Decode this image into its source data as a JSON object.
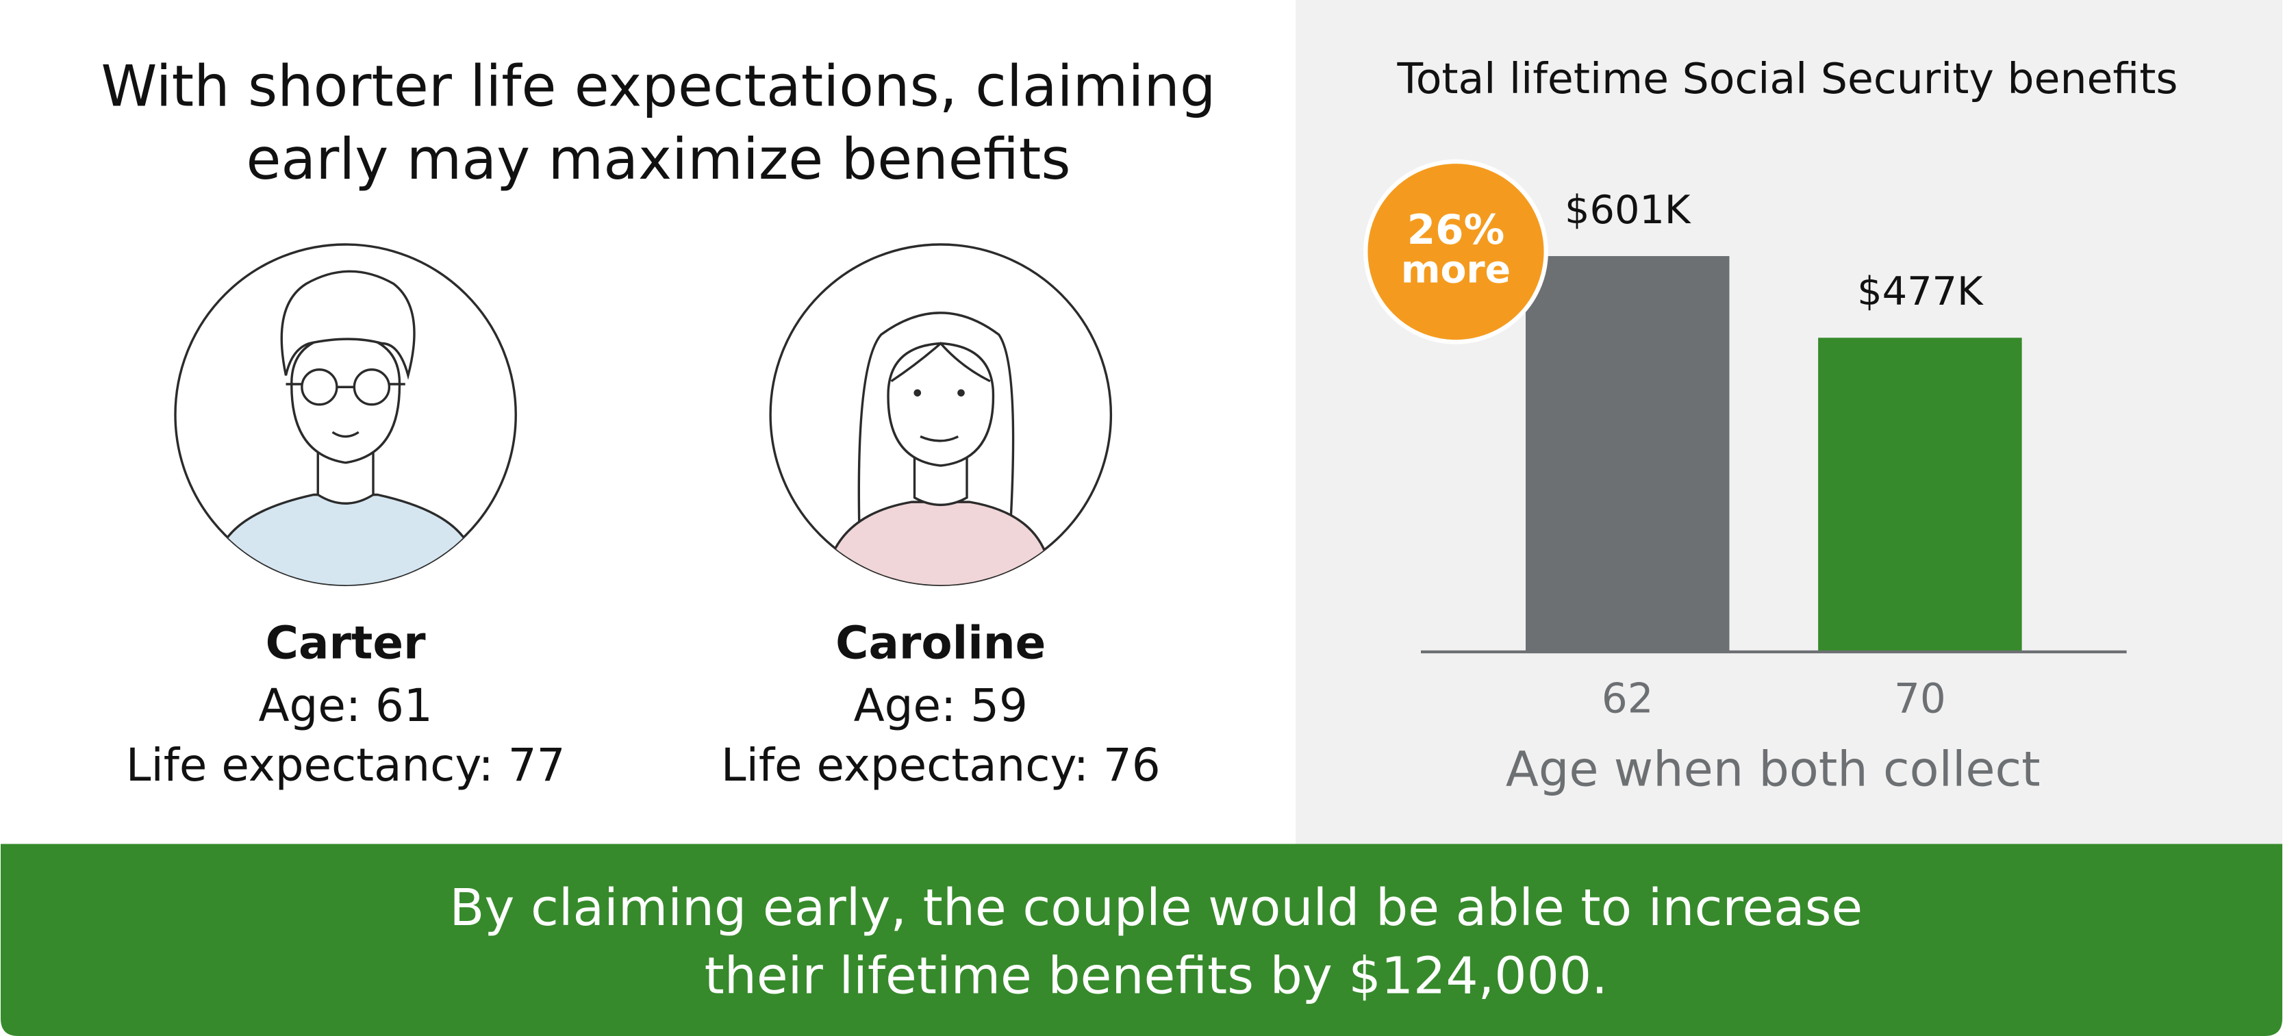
{
  "title": [
    "With shorter life expectations, claiming",
    "early may maximize benefits"
  ],
  "people": [
    {
      "name": "Carter",
      "age": "Age: 61",
      "life_expectancy": "Life expectancy: 77"
    },
    {
      "name": "Caroline",
      "age": "Age: 59",
      "life_expectancy": "Life expectancy: 76"
    }
  ],
  "chart_data": {
    "type": "bar",
    "title": "Total lifetime Social Security benefits",
    "categories": [
      "62",
      "70"
    ],
    "values": [
      601,
      477
    ],
    "value_labels": [
      "$601K",
      "$477K"
    ],
    "colors": [
      "#6d7073",
      "#368a2b"
    ],
    "x_label": "Age when both collect",
    "annotation": [
      "26%",
      "more"
    ],
    "annotation_color": "#f49b1f"
  },
  "footer": [
    "By claiming early, the couple would be able to increase",
    "their lifetime benefits by $124,000."
  ]
}
